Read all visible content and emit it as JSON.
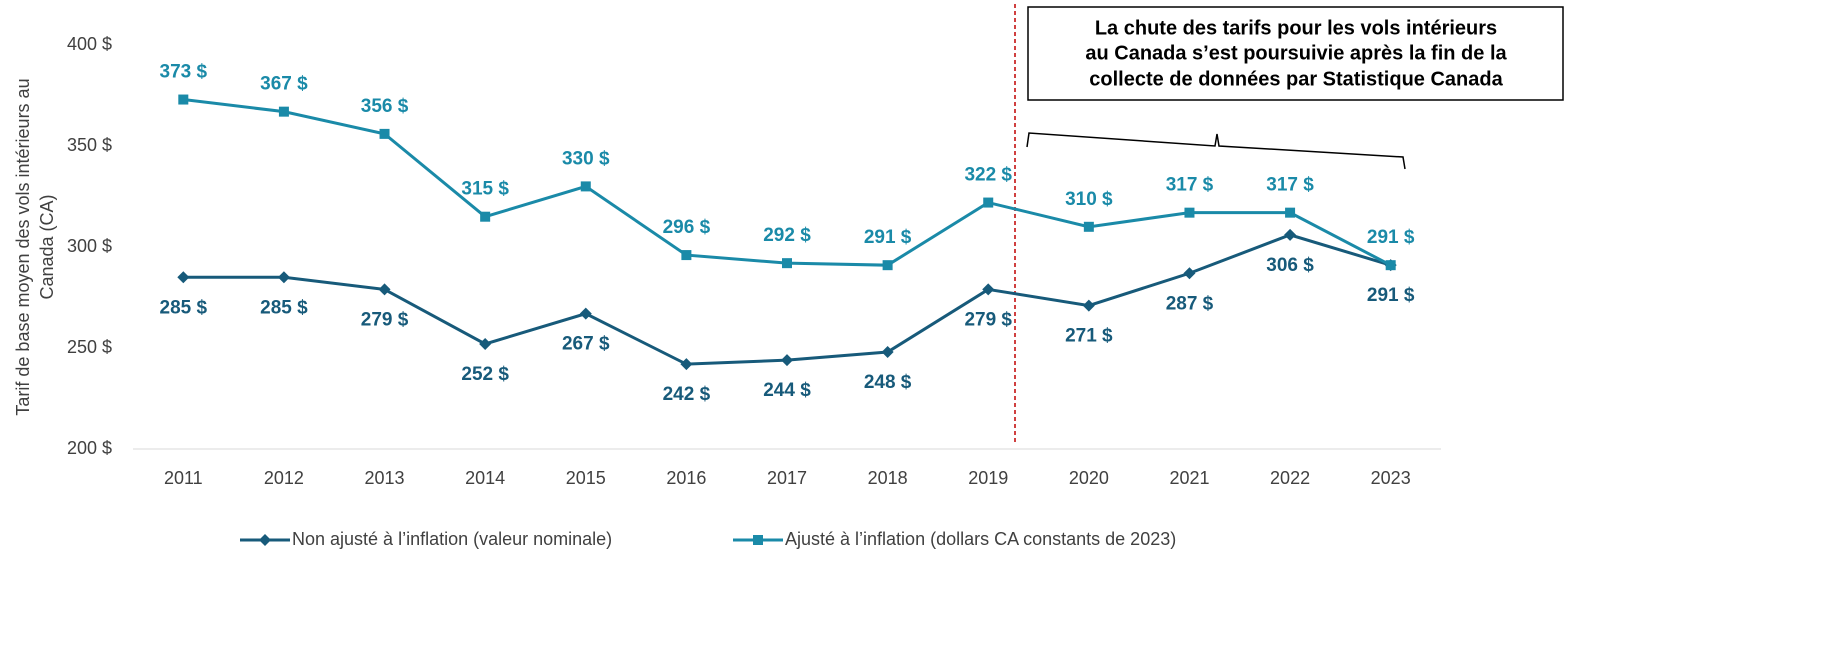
{
  "chart_data": {
    "type": "line",
    "y_label": [
      "Tarif de base moyen des vols intérieurs au",
      "Canada (CA)"
    ],
    "annotation": [
      "La chute des tarifs pour les vols intérieurs",
      "au Canada s’est poursuivie après la fin de la",
      "collecte de données par Statistique Canada"
    ],
    "categories": [
      "2011",
      "2012",
      "2013",
      "2014",
      "2015",
      "2016",
      "2017",
      "2018",
      "2019",
      "2020",
      "2021",
      "2022",
      "2023"
    ],
    "series": [
      {
        "name": "Non ajusté à l’inflation (valeur nominale)",
        "color": "#175a7a",
        "marker": "diamond",
        "values": [
          285,
          285,
          279,
          252,
          267,
          242,
          244,
          248,
          279,
          271,
          287,
          306,
          291
        ],
        "value_labels": [
          "285 $",
          "285 $",
          "279 $",
          "252 $",
          "267 $",
          "242 $",
          "244 $",
          "248 $",
          "279 $",
          "271 $",
          "287 $",
          "306 $",
          "291 $"
        ]
      },
      {
        "name": "Ajusté à l’inflation (dollars CA constants de 2023)",
        "color": "#1a8aa8",
        "marker": "square",
        "values": [
          373,
          367,
          356,
          315,
          330,
          296,
          292,
          291,
          322,
          310,
          317,
          317,
          291
        ],
        "value_labels": [
          "373 $",
          "367 $",
          "356 $",
          "315 $",
          "330 $",
          "296 $",
          "292 $",
          "291 $",
          "322 $",
          "310 $",
          "317 $",
          "317 $",
          "291 $"
        ]
      }
    ],
    "ylim": [
      200,
      400
    ],
    "yticks": [
      {
        "value": 200,
        "label": "200 $"
      },
      {
        "value": 250,
        "label": "250 $"
      },
      {
        "value": 300,
        "label": "300 $"
      },
      {
        "value": 350,
        "label": "350 $"
      },
      {
        "value": 400,
        "label": "400 $"
      }
    ],
    "grid": false,
    "legend": "bottom"
  }
}
